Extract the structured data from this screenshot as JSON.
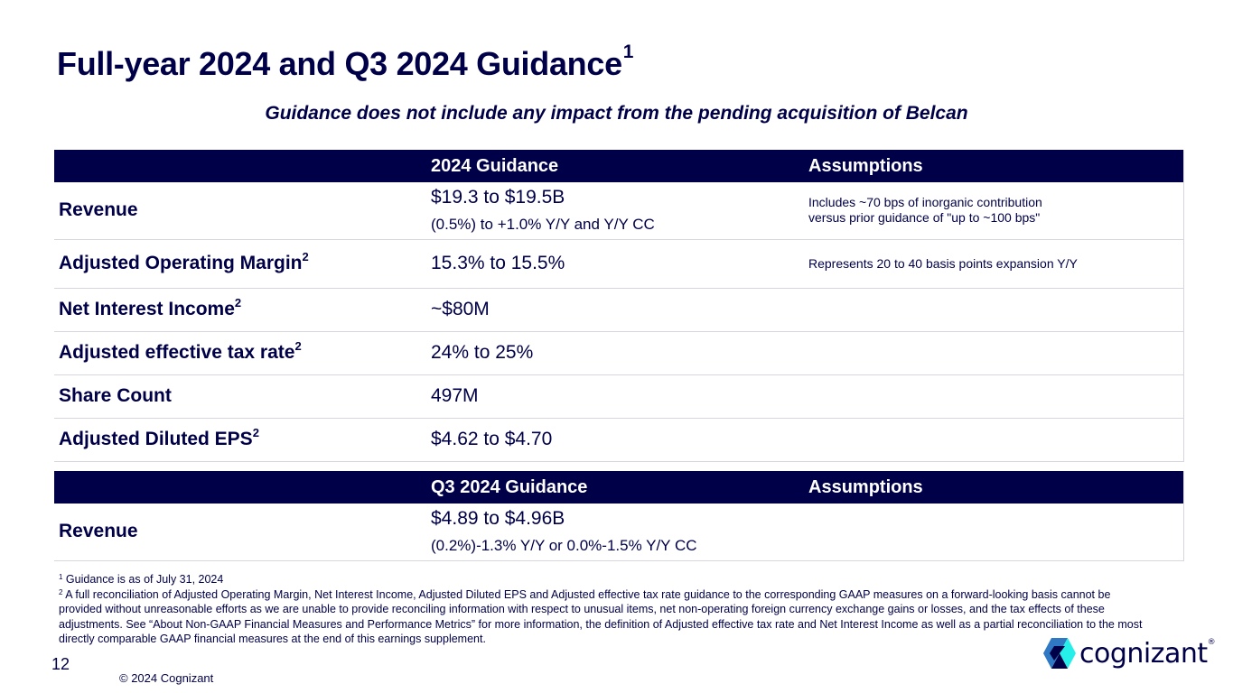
{
  "title": "Full-year 2024 and Q3 2024 Guidance",
  "title_sup": "1",
  "subtitle": "Guidance does not include any impact from the pending acquisition of Belcan",
  "fy": {
    "headers": [
      "",
      "2024 Guidance",
      "Assumptions"
    ],
    "rows": [
      {
        "metric": "Revenue",
        "sup": "",
        "value": "$19.3 to $19.5B",
        "value_sub": "(0.5%) to +1.0% Y/Y and Y/Y CC",
        "assump_line1": "Includes  ~70 bps of inorganic contribution",
        "assump_line2": "versus prior guidance of \"up to ~100 bps\""
      },
      {
        "metric": "Adjusted Operating Margin",
        "sup": "2",
        "value": "15.3% to 15.5%",
        "assumption": "Represents 20 to 40 basis points expansion Y/Y"
      },
      {
        "metric": "Net Interest Income",
        "sup": "2",
        "value": "~$80M",
        "assumption": ""
      },
      {
        "metric": "Adjusted effective tax rate",
        "sup": "2",
        "value": "24% to 25%",
        "assumption": ""
      },
      {
        "metric": "Share Count",
        "sup": "",
        "value": "497M",
        "assumption": ""
      },
      {
        "metric": "Adjusted Diluted EPS",
        "sup": "2",
        "value": "$4.62 to $4.70",
        "assumption": ""
      }
    ]
  },
  "q3": {
    "headers": [
      "",
      "Q3 2024 Guidance",
      "Assumptions"
    ],
    "rows": [
      {
        "metric": "Revenue",
        "value": "$4.89 to $4.96B",
        "value_sub": "(0.2%)-1.3% Y/Y or 0.0%-1.5% Y/Y CC",
        "assumption": ""
      }
    ]
  },
  "footnotes": {
    "n1_mark": "1",
    "n1": " Guidance is as of July 31, 2024",
    "n2_mark": "2",
    "n2": " A full reconciliation of Adjusted Operating Margin, Net Interest Income, Adjusted Diluted EPS and Adjusted effective tax rate guidance to the corresponding GAAP measures on a forward-looking basis cannot be provided without unreasonable  efforts as we are unable to provide reconciling information with respect to unusual items, net non-operating foreign currency exchange gains or losses, and the tax effects of these adjustments. See “About Non-GAAP Financial Measures and Performance Metrics” for more information, the definition of Adjusted effective tax rate and Net Interest Income as well as a partial reconciliation to the most directly comparable GAAP financial measures at the end of this earnings supplement."
  },
  "copyright": "© 2024 Cognizant",
  "page_number": "12",
  "logo": {
    "word": "cognizant",
    "mark": "®",
    "colors": {
      "dark": "#000048",
      "blue": "#2F78C4",
      "cyan": "#26EFE9"
    }
  }
}
